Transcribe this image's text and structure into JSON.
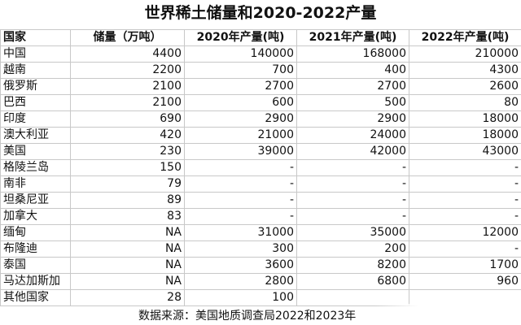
{
  "title": "世界稀土储量和2020-2022产量",
  "columns": [
    "国家",
    "储量（万吨）",
    "2020年产量(吨)",
    "2021年产量(吨)",
    "2022年产量(吨)"
  ],
  "rows": [
    [
      "中国",
      "4400",
      "140000",
      "168000",
      "210000"
    ],
    [
      "越南",
      "2200",
      "700",
      "400",
      "4300"
    ],
    [
      "俄罗斯",
      "2100",
      "2700",
      "2700",
      "2600"
    ],
    [
      "巴西",
      "2100",
      "600",
      "500",
      "80"
    ],
    [
      "印度",
      "690",
      "2900",
      "2900",
      "18000"
    ],
    [
      "澳大利亚",
      "420",
      "21000",
      "24000",
      "18000"
    ],
    [
      "美国",
      "230",
      "39000",
      "42000",
      "43000"
    ],
    [
      "格陵兰岛",
      "150",
      "-",
      "-",
      "-"
    ],
    [
      "南非",
      "79",
      "-",
      "-",
      "-"
    ],
    [
      "坦桑尼亚",
      "89",
      "-",
      "-",
      "-"
    ],
    [
      "加拿大",
      "83",
      "-",
      "-",
      "-"
    ],
    [
      "缅甸",
      "NA",
      "31000",
      "35000",
      "12000"
    ],
    [
      "布隆迪",
      "NA",
      "300",
      "200",
      "-"
    ],
    [
      "泰国",
      "NA",
      "3600",
      "8200",
      "1700"
    ],
    [
      "马达加斯加",
      "NA",
      "2800",
      "6800",
      "960"
    ],
    [
      "其他国家",
      "28",
      "100",
      "",
      ""
    ]
  ],
  "source": "数据来源：美国地质调查局2022和2023年"
}
